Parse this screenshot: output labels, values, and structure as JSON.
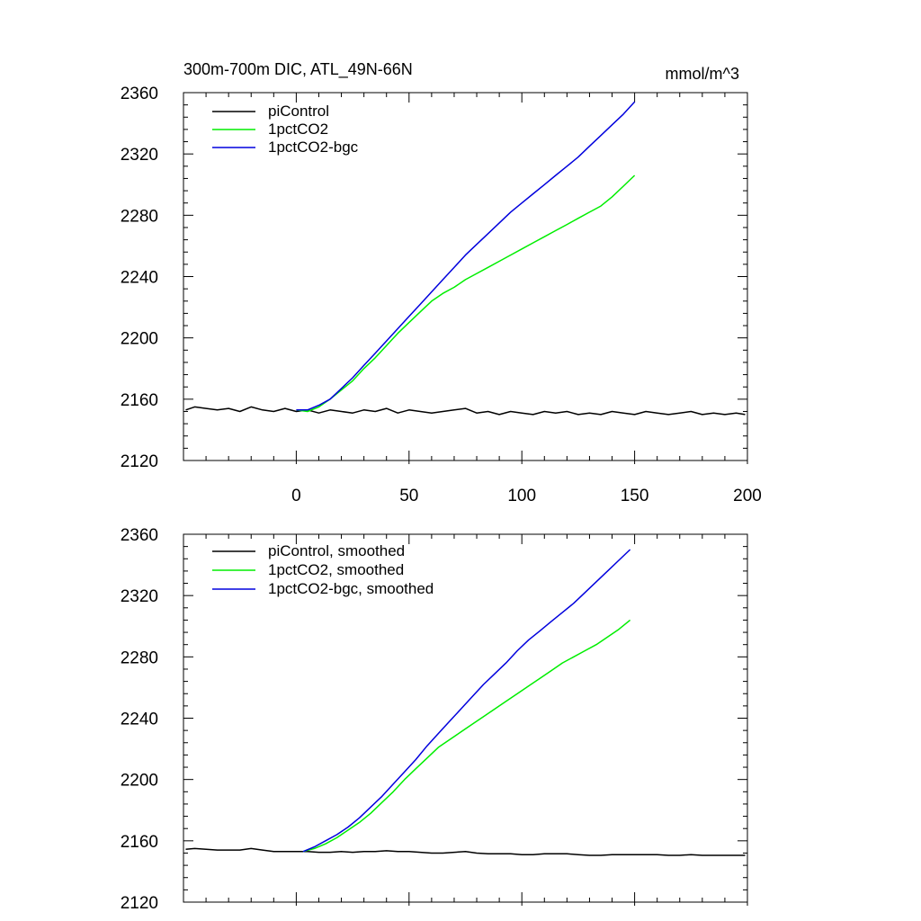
{
  "title": "300m-700m DIC, ATL_49N-66N",
  "units": "mmol/m^3",
  "colors": {
    "piControl": "#000000",
    "1pctCO2": "#00ee00",
    "1pctCO2-bgc": "#0000dd"
  },
  "chart_data": [
    {
      "type": "line",
      "title": "300m-700m DIC, ATL_49N-66N",
      "units": "mmol/m^3",
      "xlim": [
        -50,
        200
      ],
      "ylim": [
        2120,
        2360
      ],
      "xticks": [
        0,
        50,
        100,
        150,
        200
      ],
      "yticks": [
        2120,
        2160,
        2200,
        2240,
        2280,
        2320,
        2360
      ],
      "xtick_labels": [
        "0",
        "50",
        "100",
        "150",
        "200"
      ],
      "ytick_labels": [
        "2120",
        "2160",
        "2200",
        "2240",
        "2280",
        "2320",
        "2360"
      ],
      "legend": [
        "piControl",
        "1pctCO2",
        "1pctCO2-bgc"
      ],
      "series": [
        {
          "name": "piControl",
          "color": "#000000",
          "x": [
            -49,
            -45,
            -40,
            -35,
            -30,
            -25,
            -20,
            -15,
            -10,
            -5,
            0,
            5,
            10,
            15,
            20,
            25,
            30,
            35,
            40,
            45,
            50,
            55,
            60,
            65,
            70,
            75,
            80,
            85,
            90,
            95,
            100,
            105,
            110,
            115,
            120,
            125,
            130,
            135,
            140,
            145,
            150,
            155,
            160,
            165,
            170,
            175,
            180,
            185,
            190,
            195,
            199
          ],
          "values": [
            2153,
            2155,
            2154,
            2153,
            2154,
            2152,
            2155,
            2153,
            2152,
            2154,
            2152,
            2153,
            2151,
            2153,
            2152,
            2151,
            2153,
            2152,
            2154,
            2151,
            2153,
            2152,
            2151,
            2152,
            2153,
            2154,
            2151,
            2152,
            2150,
            2152,
            2151,
            2150,
            2152,
            2151,
            2152,
            2150,
            2151,
            2150,
            2152,
            2151,
            2150,
            2152,
            2151,
            2150,
            2151,
            2152,
            2150,
            2151,
            2150,
            2151,
            2150
          ]
        },
        {
          "name": "1pctCO2",
          "color": "#00ee00",
          "x": [
            0,
            5,
            10,
            15,
            20,
            25,
            30,
            35,
            40,
            45,
            50,
            55,
            60,
            65,
            70,
            75,
            80,
            85,
            90,
            95,
            100,
            105,
            110,
            115,
            120,
            125,
            130,
            135,
            140,
            145,
            150
          ],
          "values": [
            2153,
            2152,
            2155,
            2160,
            2166,
            2172,
            2180,
            2187,
            2195,
            2203,
            2210,
            2217,
            2224,
            2229,
            2233,
            2238,
            2242,
            2246,
            2250,
            2254,
            2258,
            2262,
            2266,
            2270,
            2274,
            2278,
            2282,
            2286,
            2292,
            2299,
            2306
          ]
        },
        {
          "name": "1pctCO2-bgc",
          "color": "#0000dd",
          "x": [
            0,
            5,
            10,
            15,
            20,
            25,
            30,
            35,
            40,
            45,
            50,
            55,
            60,
            65,
            70,
            75,
            80,
            85,
            90,
            95,
            100,
            105,
            110,
            115,
            120,
            125,
            130,
            135,
            140,
            145,
            150
          ],
          "values": [
            2153,
            2153,
            2156,
            2160,
            2167,
            2174,
            2182,
            2190,
            2198,
            2206,
            2214,
            2222,
            2230,
            2238,
            2246,
            2254,
            2261,
            2268,
            2275,
            2282,
            2288,
            2294,
            2300,
            2306,
            2312,
            2318,
            2325,
            2332,
            2339,
            2346,
            2354
          ]
        }
      ]
    },
    {
      "type": "line",
      "xlim": [
        -50,
        200
      ],
      "ylim": [
        2120,
        2360
      ],
      "xticks": [
        0,
        50,
        100,
        150,
        200
      ],
      "yticks": [
        2120,
        2160,
        2200,
        2240,
        2280,
        2320,
        2360
      ],
      "ytick_labels": [
        "2120",
        "2160",
        "2200",
        "2240",
        "2280",
        "2320",
        "2360"
      ],
      "legend": [
        "piControl, smoothed",
        "1pctCO2, smoothed",
        "1pctCO2-bgc, smoothed"
      ],
      "series": [
        {
          "name": "piControl, smoothed",
          "color": "#000000",
          "x": [
            -49,
            -45,
            -40,
            -35,
            -30,
            -25,
            -20,
            -15,
            -10,
            -5,
            0,
            5,
            10,
            15,
            20,
            25,
            30,
            35,
            40,
            45,
            50,
            55,
            60,
            65,
            70,
            75,
            80,
            85,
            90,
            95,
            100,
            105,
            110,
            115,
            120,
            125,
            130,
            135,
            140,
            145,
            150,
            155,
            160,
            165,
            170,
            175,
            180,
            185,
            190,
            195,
            199
          ],
          "values": [
            2154.5,
            2155,
            2154.5,
            2154,
            2154,
            2154,
            2155,
            2154,
            2153,
            2153,
            2153,
            2153,
            2152.5,
            2152.5,
            2153,
            2152.5,
            2153,
            2153,
            2153.5,
            2153,
            2153,
            2152.5,
            2152,
            2152,
            2152.5,
            2153,
            2152,
            2151.5,
            2151.5,
            2151.5,
            2151,
            2151,
            2151.5,
            2151.5,
            2151.5,
            2151,
            2150.5,
            2150.5,
            2151,
            2151,
            2151,
            2151,
            2151,
            2150.5,
            2150.5,
            2151,
            2150.5,
            2150.5,
            2150.5,
            2150.5,
            2150.5
          ]
        },
        {
          "name": "1pctCO2, smoothed",
          "color": "#00ee00",
          "x": [
            3,
            8,
            13,
            18,
            23,
            28,
            33,
            38,
            43,
            48,
            53,
            58,
            63,
            68,
            73,
            78,
            83,
            88,
            93,
            98,
            103,
            108,
            113,
            118,
            123,
            128,
            133,
            138,
            143,
            148
          ],
          "values": [
            2153,
            2155,
            2158,
            2162,
            2167,
            2172,
            2178,
            2185,
            2192,
            2200,
            2207,
            2214,
            2221,
            2226,
            2231,
            2236,
            2241,
            2246,
            2251,
            2256,
            2261,
            2266,
            2271,
            2276,
            2280,
            2284,
            2288,
            2293,
            2298,
            2304
          ]
        },
        {
          "name": "1pctCO2-bgc, smoothed",
          "color": "#0000dd",
          "x": [
            3,
            8,
            13,
            18,
            23,
            28,
            33,
            38,
            43,
            48,
            53,
            58,
            63,
            68,
            73,
            78,
            83,
            88,
            93,
            98,
            103,
            108,
            113,
            118,
            123,
            128,
            133,
            138,
            143,
            148
          ],
          "values": [
            2153,
            2156,
            2160,
            2164,
            2169,
            2175,
            2182,
            2189,
            2197,
            2205,
            2213,
            2222,
            2230,
            2238,
            2246,
            2254,
            2262,
            2269,
            2276,
            2284,
            2291,
            2297,
            2303,
            2309,
            2315,
            2322,
            2329,
            2336,
            2343,
            2350
          ]
        }
      ]
    }
  ]
}
